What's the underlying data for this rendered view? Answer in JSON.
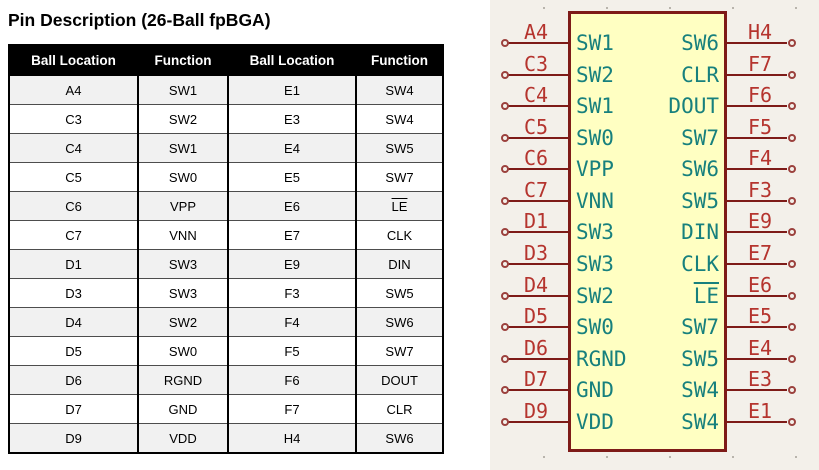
{
  "title": "Pin Description (26-Ball fpBGA)",
  "table": {
    "headers": [
      "Ball Location",
      "Function",
      "Ball Location",
      "Function"
    ],
    "rows": [
      [
        {
          "t": "A4"
        },
        {
          "t": "SW1"
        },
        {
          "t": "E1"
        },
        {
          "t": "SW4"
        }
      ],
      [
        {
          "t": "C3"
        },
        {
          "t": "SW2"
        },
        {
          "t": "E3"
        },
        {
          "t": "SW4"
        }
      ],
      [
        {
          "t": "C4"
        },
        {
          "t": "SW1"
        },
        {
          "t": "E4"
        },
        {
          "t": "SW5"
        }
      ],
      [
        {
          "t": "C5"
        },
        {
          "t": "SW0"
        },
        {
          "t": "E5"
        },
        {
          "t": "SW7"
        }
      ],
      [
        {
          "t": "C6"
        },
        {
          "t": "VPP"
        },
        {
          "t": "E6"
        },
        {
          "t": "LE",
          "bar": true
        }
      ],
      [
        {
          "t": "C7"
        },
        {
          "t": "VNN"
        },
        {
          "t": "E7"
        },
        {
          "t": "CLK"
        }
      ],
      [
        {
          "t": "D1"
        },
        {
          "t": "SW3"
        },
        {
          "t": "E9"
        },
        {
          "t": "DIN"
        }
      ],
      [
        {
          "t": "D3"
        },
        {
          "t": "SW3"
        },
        {
          "t": "F3"
        },
        {
          "t": "SW5"
        }
      ],
      [
        {
          "t": "D4"
        },
        {
          "t": "SW2"
        },
        {
          "t": "F4"
        },
        {
          "t": "SW6"
        }
      ],
      [
        {
          "t": "D5"
        },
        {
          "t": "SW0"
        },
        {
          "t": "F5"
        },
        {
          "t": "SW7"
        }
      ],
      [
        {
          "t": "D6"
        },
        {
          "t": "RGND"
        },
        {
          "t": "F6"
        },
        {
          "t": "DOUT"
        }
      ],
      [
        {
          "t": "D7"
        },
        {
          "t": "GND"
        },
        {
          "t": "F7"
        },
        {
          "t": "CLR"
        }
      ],
      [
        {
          "t": "D9"
        },
        {
          "t": "VDD"
        },
        {
          "t": "H4"
        },
        {
          "t": "SW6"
        }
      ]
    ]
  },
  "schematic": {
    "left_pins": [
      {
        "num": "A4",
        "name": "SW1"
      },
      {
        "num": "C3",
        "name": "SW2"
      },
      {
        "num": "C4",
        "name": "SW1"
      },
      {
        "num": "C5",
        "name": "SW0"
      },
      {
        "num": "C6",
        "name": "VPP"
      },
      {
        "num": "C7",
        "name": "VNN"
      },
      {
        "num": "D1",
        "name": "SW3"
      },
      {
        "num": "D3",
        "name": "SW3"
      },
      {
        "num": "D4",
        "name": "SW2"
      },
      {
        "num": "D5",
        "name": "SW0"
      },
      {
        "num": "D6",
        "name": "RGND"
      },
      {
        "num": "D7",
        "name": "GND"
      },
      {
        "num": "D9",
        "name": "VDD"
      }
    ],
    "right_pins": [
      {
        "num": "H4",
        "name": "SW6"
      },
      {
        "num": "F7",
        "name": "CLR"
      },
      {
        "num": "F6",
        "name": "DOUT"
      },
      {
        "num": "F5",
        "name": "SW7"
      },
      {
        "num": "F4",
        "name": "SW6"
      },
      {
        "num": "F3",
        "name": "SW5"
      },
      {
        "num": "E9",
        "name": "DIN"
      },
      {
        "num": "E7",
        "name": "CLK"
      },
      {
        "num": "E6",
        "name": "LE",
        "bar": true
      },
      {
        "num": "E5",
        "name": "SW7"
      },
      {
        "num": "E4",
        "name": "SW5"
      },
      {
        "num": "E3",
        "name": "SW4"
      },
      {
        "num": "E1",
        "name": "SW4"
      }
    ],
    "colors": {
      "panel_bg": "#f3f0ea",
      "body_fill": "#ffffc2",
      "outline": "#7e1b18",
      "pin_number": "#b5342e",
      "pin_name": "#17807d"
    }
  }
}
